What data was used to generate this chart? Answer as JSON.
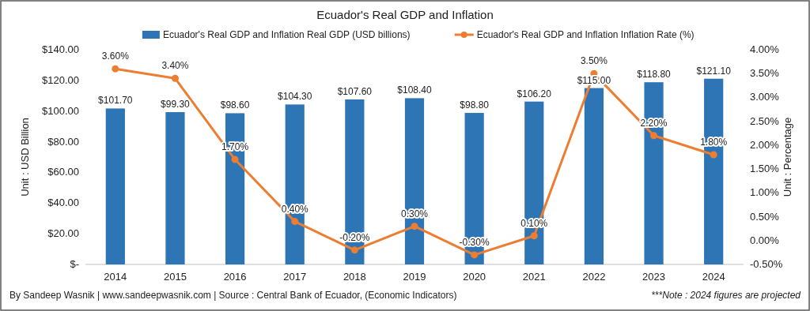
{
  "chart_data": {
    "type": "bar",
    "title": "Ecuador's Real GDP and Inflation",
    "categories": [
      "2014",
      "2015",
      "2016",
      "2017",
      "2018",
      "2019",
      "2020",
      "2021",
      "2022",
      "2023",
      "2024"
    ],
    "series": [
      {
        "name": "Ecuador's Real GDP and Inflation Real GDP (USD billions)",
        "color": "#2e75b6",
        "values": [
          101.7,
          99.3,
          98.6,
          104.3,
          107.6,
          108.4,
          98.8,
          106.2,
          115.0,
          118.8,
          121.1
        ],
        "value_labels": [
          "$101.70",
          "$99.30",
          "$98.60",
          "$104.30",
          "$107.60",
          "$108.40",
          "$98.80",
          "$106.20",
          "$115.00",
          "$118.80",
          "$121.10"
        ]
      },
      {
        "name": "Ecuador's Real GDP and Inflation Inflation Rate (%)",
        "type": "line",
        "axis": "y2",
        "color": "#ed7d31",
        "marker": "circle",
        "values": [
          3.6,
          3.4,
          1.7,
          0.4,
          -0.2,
          0.3,
          -0.3,
          0.1,
          3.5,
          2.2,
          1.8
        ],
        "value_labels": [
          "3.60%",
          "3.40%",
          "1.70%",
          "0.40%",
          "-0.20%",
          "0.30%",
          "-0.30%",
          "0.10%",
          "3.50%",
          "2.20%",
          "1.80%"
        ]
      }
    ],
    "ylabel": "Unit : USD Billion",
    "y2label": "Unit : Percentage",
    "ylim": [
      0,
      140
    ],
    "yticks": [
      {
        "value": 0,
        "label": "$-"
      },
      {
        "value": 20,
        "label": "$20.00"
      },
      {
        "value": 40,
        "label": "$40.00"
      },
      {
        "value": 60,
        "label": "$60.00"
      },
      {
        "value": 80,
        "label": "$80.00"
      },
      {
        "value": 100,
        "label": "$100.00"
      },
      {
        "value": 120,
        "label": "$120.00"
      },
      {
        "value": 140,
        "label": "$140.00"
      }
    ],
    "y2lim": [
      -0.5,
      4
    ],
    "y2ticks": [
      {
        "value": -0.5,
        "label": "-0.50%"
      },
      {
        "value": 0,
        "label": "0.00%"
      },
      {
        "value": 0.5,
        "label": "0.50%"
      },
      {
        "value": 1,
        "label": "1.00%"
      },
      {
        "value": 1.5,
        "label": "1.50%"
      },
      {
        "value": 2,
        "label": "2.00%"
      },
      {
        "value": 2.5,
        "label": "2.50%"
      },
      {
        "value": 3,
        "label": "3.00%"
      },
      {
        "value": 3.5,
        "label": "3.50%"
      },
      {
        "value": 4,
        "label": "4.00%"
      }
    ],
    "legend": "top right",
    "grid": false,
    "annotations": [
      "By Sandeep Wasnik | www.sandeepwasnik.com | Source : Central Bank of Ecuador, (Economic Indicators)",
      "***Note : 2024 figures are projected"
    ]
  }
}
